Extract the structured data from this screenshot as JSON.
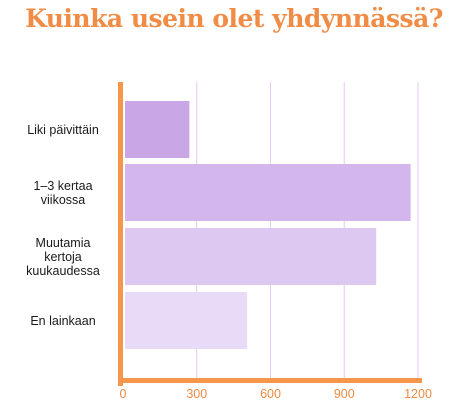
{
  "chart_data": {
    "type": "bar",
    "orientation": "horizontal",
    "title": "Kuinka usein olet yhdynnässä?",
    "categories": [
      [
        "Liki päivittäin"
      ],
      [
        "1–3 kertaa",
        "viikossa"
      ],
      [
        "Muutamia",
        "kertoja",
        "kuukaudessa"
      ],
      [
        "En lainkaan"
      ]
    ],
    "values": [
      270,
      1170,
      1030,
      505
    ],
    "xticks": [
      "0",
      "300",
      "600",
      "900",
      "1200"
    ],
    "xlim": [
      0,
      1200
    ],
    "grid": true,
    "colors": {
      "title": "#f08c46",
      "axis": "#f5964a",
      "tick_labels": "#ee8a45",
      "grid": "#e6c8f0",
      "bars": [
        "#c9a6e6",
        "#d2b6ec",
        "#ddc8f2",
        "#e7dbf7"
      ]
    }
  }
}
